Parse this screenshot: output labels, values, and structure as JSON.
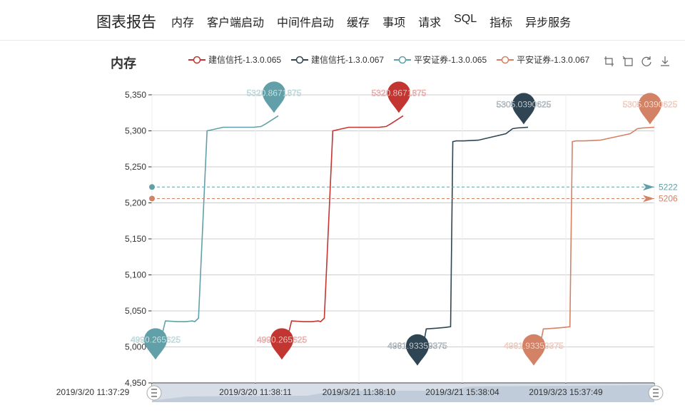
{
  "header": {
    "brand": "图表报告",
    "nav": [
      "内存",
      "客户端启动",
      "中间件启动",
      "缓存",
      "事项",
      "请求",
      "SQL",
      "指标",
      "异步服务"
    ]
  },
  "panel": {
    "title": "内存"
  },
  "toolbox": [
    "zoom-icon",
    "zoom-reset-icon",
    "restore-icon",
    "download-icon"
  ],
  "colors": {
    "s1": "#c23531",
    "s2": "#2f4554",
    "s3": "#61a0a8",
    "s4": "#d48265"
  },
  "chart_data": {
    "type": "line",
    "ylim": [
      4950,
      5350
    ],
    "yticks": [
      "4,950",
      "5,000",
      "5,050",
      "5,100",
      "5,150",
      "5,200",
      "5,250",
      "5,300",
      "5,350"
    ],
    "ytick_values": [
      4950,
      5000,
      5050,
      5100,
      5150,
      5200,
      5250,
      5300,
      5350
    ],
    "xticks": [
      "2019/3/20 11:37:29",
      "2019/3/20 11:38:11",
      "2019/3/21 11:38:10",
      "2019/3/21 15:38:04",
      "2019/3/23 15:37:49"
    ],
    "grid": true,
    "legend": "top",
    "series": [
      {
        "name": "建信信托-1.3.0.065",
        "color": "#c23531",
        "values": [
          4990.27,
          5015,
          5036,
          5035,
          5035,
          5036,
          5035,
          5040,
          5300,
          5305,
          5305,
          5306,
          5310,
          5320.87
        ],
        "max_label": "5320.8671875",
        "min_label": "4990.265625"
      },
      {
        "name": "建信信托-1.3.0.067",
        "color": "#2f4554",
        "values": [
          4981.93,
          5000,
          5025,
          5026,
          5027,
          5028,
          5285,
          5286,
          5286,
          5287,
          5296,
          5303,
          5304,
          5305.04
        ],
        "max_label": "5305.0390625",
        "min_label": "4981.93359375"
      },
      {
        "name": "平安证券-1.3.0.065",
        "color": "#61a0a8",
        "values": [
          4990.27,
          5015,
          5036,
          5035,
          5035,
          5036,
          5035,
          5040,
          5300,
          5305,
          5305,
          5306,
          5310,
          5320.87
        ],
        "max_label": "5320.8671875",
        "min_label": "4990.265625",
        "markline": 5222,
        "markline_label": "5222"
      },
      {
        "name": "平安证券-1.3.0.067",
        "color": "#d48265",
        "values": [
          4981.93,
          5000,
          5025,
          5026,
          5027,
          5028,
          5285,
          5286,
          5286,
          5287,
          5296,
          5303,
          5304,
          5305.04
        ],
        "max_label": "5305.0390625",
        "min_label": "4981.93359375",
        "markline": 5206,
        "markline_label": "5206"
      }
    ]
  }
}
